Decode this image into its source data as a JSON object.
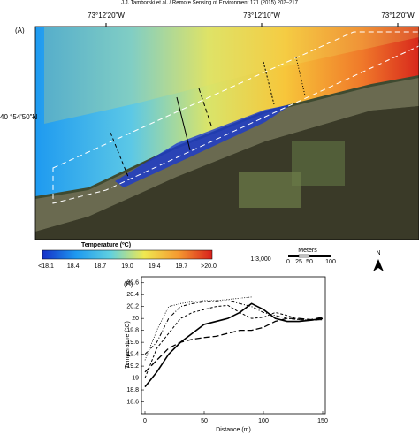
{
  "header": "J.J. Tamborski et al. / Remote Sensing of Environment 171 (2015) 202–217",
  "panel_a": {
    "label": "(A)",
    "longitudes": [
      "73°12'20\"W",
      "73°12'10\"W",
      "73°12'0\"W"
    ],
    "latitude": "40 °54'50\"N",
    "colorbar": {
      "title": "Temperature (ºC)",
      "labels": [
        "<18.1",
        "18.4",
        "18.7",
        "19.0",
        "19.4",
        "19.7",
        ">20.0"
      ]
    },
    "scale": "1:3,000",
    "scalebar": {
      "title": "Meters",
      "labels": [
        "0",
        "25",
        "50",
        "100"
      ]
    },
    "north": "N"
  },
  "chart_data": {
    "type": "line",
    "panel_label": "(B)",
    "x_label": "Distance (m)",
    "y_label": "Temperature (°C)",
    "x": [
      0,
      10,
      20,
      30,
      40,
      50,
      60,
      70,
      80,
      90,
      100,
      110,
      120,
      130,
      140,
      150
    ],
    "xlim": [
      0,
      150
    ],
    "xticks": [
      0,
      50,
      100,
      150
    ],
    "ylim": [
      18.4,
      20.7
    ],
    "yticks": [
      18.6,
      18.8,
      19,
      19.2,
      19.4,
      19.6,
      19.8,
      20,
      20.2,
      20.4,
      20.6
    ],
    "series": [
      {
        "color": "#000",
        "dash": "1,1.5",
        "width": 0.8,
        "values": [
          19.3,
          19.8,
          20.2,
          20.25,
          20.28,
          20.3,
          20.3,
          20.32,
          20.34,
          20.36,
          null,
          null,
          null,
          null,
          null,
          null
        ]
      },
      {
        "color": "#000",
        "dash": "4,2,1,2",
        "width": 1,
        "values": [
          19.4,
          19.6,
          20.0,
          20.2,
          20.25,
          20.28,
          20.28,
          20.3,
          20.25,
          20.2,
          20.1,
          20.05,
          20.0,
          19.98,
          19.97,
          19.98
        ]
      },
      {
        "color": "#000",
        "dash": "3,2",
        "width": 1,
        "values": [
          19.0,
          19.5,
          19.75,
          20.0,
          20.1,
          20.15,
          20.2,
          20.22,
          20.1,
          20.0,
          20.02,
          20.1,
          20.05,
          19.98,
          19.97,
          19.98
        ]
      },
      {
        "color": "#000",
        "dash": "none",
        "width": 1.6,
        "values": [
          18.85,
          19.1,
          19.4,
          19.6,
          19.75,
          19.9,
          19.95,
          20.0,
          20.1,
          20.25,
          20.15,
          20.0,
          19.95,
          19.95,
          19.97,
          20.0
        ]
      },
      {
        "color": "#000",
        "dash": "7,3",
        "width": 1.3,
        "values": [
          19.1,
          19.3,
          19.5,
          19.6,
          19.65,
          19.68,
          19.7,
          19.75,
          19.8,
          19.8,
          19.85,
          19.95,
          20.0,
          20.0,
          19.98,
          20.02
        ]
      }
    ]
  }
}
